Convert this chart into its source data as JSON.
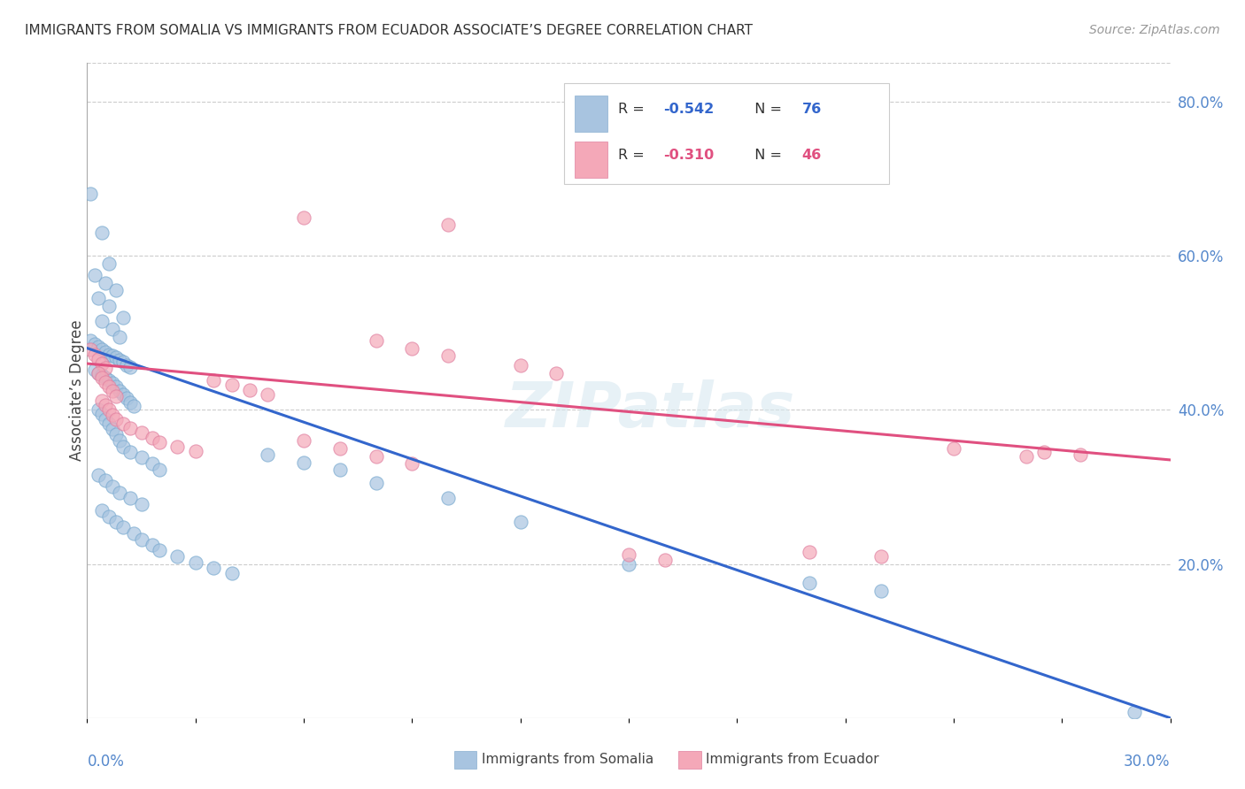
{
  "title": "IMMIGRANTS FROM SOMALIA VS IMMIGRANTS FROM ECUADOR ASSOCIATE’S DEGREE CORRELATION CHART",
  "source": "Source: ZipAtlas.com",
  "ylabel": "Associate’s Degree",
  "right_yticks": [
    "20.0%",
    "40.0%",
    "60.0%",
    "80.0%"
  ],
  "right_ytick_vals": [
    0.2,
    0.4,
    0.6,
    0.8
  ],
  "somalia_color": "#a8c4e0",
  "ecuador_color": "#f4a8b8",
  "somalia_line_color": "#3366cc",
  "ecuador_line_color": "#e05080",
  "somalia_label": "Immigrants from Somalia",
  "ecuador_label": "Immigrants from Ecuador",
  "xmin": 0.0,
  "xmax": 0.3,
  "ymin": 0.0,
  "ymax": 0.85,
  "somalia_trend": [
    0.48,
    0.0
  ],
  "ecuador_trend": [
    0.46,
    0.335
  ],
  "watermark": "ZIPatlas",
  "somalia_scatter": [
    [
      0.001,
      0.68
    ],
    [
      0.004,
      0.63
    ],
    [
      0.006,
      0.59
    ],
    [
      0.002,
      0.575
    ],
    [
      0.005,
      0.565
    ],
    [
      0.008,
      0.555
    ],
    [
      0.003,
      0.545
    ],
    [
      0.006,
      0.535
    ],
    [
      0.01,
      0.52
    ],
    [
      0.004,
      0.515
    ],
    [
      0.007,
      0.505
    ],
    [
      0.009,
      0.495
    ],
    [
      0.001,
      0.49
    ],
    [
      0.002,
      0.485
    ],
    [
      0.003,
      0.482
    ],
    [
      0.004,
      0.478
    ],
    [
      0.005,
      0.475
    ],
    [
      0.006,
      0.472
    ],
    [
      0.007,
      0.47
    ],
    [
      0.008,
      0.468
    ],
    [
      0.009,
      0.465
    ],
    [
      0.01,
      0.462
    ],
    [
      0.011,
      0.458
    ],
    [
      0.012,
      0.455
    ],
    [
      0.002,
      0.452
    ],
    [
      0.003,
      0.448
    ],
    [
      0.004,
      0.445
    ],
    [
      0.005,
      0.442
    ],
    [
      0.006,
      0.438
    ],
    [
      0.007,
      0.435
    ],
    [
      0.008,
      0.43
    ],
    [
      0.009,
      0.425
    ],
    [
      0.01,
      0.42
    ],
    [
      0.011,
      0.415
    ],
    [
      0.012,
      0.41
    ],
    [
      0.013,
      0.405
    ],
    [
      0.003,
      0.4
    ],
    [
      0.004,
      0.395
    ],
    [
      0.005,
      0.388
    ],
    [
      0.006,
      0.382
    ],
    [
      0.007,
      0.375
    ],
    [
      0.008,
      0.368
    ],
    [
      0.009,
      0.36
    ],
    [
      0.01,
      0.352
    ],
    [
      0.012,
      0.345
    ],
    [
      0.015,
      0.338
    ],
    [
      0.018,
      0.33
    ],
    [
      0.02,
      0.322
    ],
    [
      0.003,
      0.315
    ],
    [
      0.005,
      0.308
    ],
    [
      0.007,
      0.3
    ],
    [
      0.009,
      0.292
    ],
    [
      0.012,
      0.285
    ],
    [
      0.015,
      0.278
    ],
    [
      0.004,
      0.27
    ],
    [
      0.006,
      0.262
    ],
    [
      0.008,
      0.255
    ],
    [
      0.01,
      0.248
    ],
    [
      0.013,
      0.24
    ],
    [
      0.015,
      0.232
    ],
    [
      0.018,
      0.225
    ],
    [
      0.02,
      0.218
    ],
    [
      0.025,
      0.21
    ],
    [
      0.03,
      0.202
    ],
    [
      0.035,
      0.195
    ],
    [
      0.04,
      0.188
    ],
    [
      0.05,
      0.342
    ],
    [
      0.06,
      0.332
    ],
    [
      0.07,
      0.322
    ],
    [
      0.08,
      0.305
    ],
    [
      0.1,
      0.285
    ],
    [
      0.12,
      0.255
    ],
    [
      0.15,
      0.2
    ],
    [
      0.2,
      0.175
    ],
    [
      0.22,
      0.165
    ],
    [
      0.29,
      0.008
    ]
  ],
  "ecuador_scatter": [
    [
      0.001,
      0.478
    ],
    [
      0.002,
      0.472
    ],
    [
      0.003,
      0.466
    ],
    [
      0.004,
      0.46
    ],
    [
      0.005,
      0.454
    ],
    [
      0.003,
      0.448
    ],
    [
      0.004,
      0.442
    ],
    [
      0.005,
      0.436
    ],
    [
      0.006,
      0.43
    ],
    [
      0.007,
      0.424
    ],
    [
      0.008,
      0.418
    ],
    [
      0.004,
      0.412
    ],
    [
      0.005,
      0.406
    ],
    [
      0.006,
      0.4
    ],
    [
      0.007,
      0.394
    ],
    [
      0.008,
      0.388
    ],
    [
      0.01,
      0.382
    ],
    [
      0.012,
      0.376
    ],
    [
      0.015,
      0.37
    ],
    [
      0.018,
      0.364
    ],
    [
      0.02,
      0.358
    ],
    [
      0.025,
      0.352
    ],
    [
      0.03,
      0.346
    ],
    [
      0.035,
      0.438
    ],
    [
      0.04,
      0.432
    ],
    [
      0.045,
      0.426
    ],
    [
      0.05,
      0.42
    ],
    [
      0.06,
      0.65
    ],
    [
      0.1,
      0.64
    ],
    [
      0.08,
      0.49
    ],
    [
      0.09,
      0.48
    ],
    [
      0.1,
      0.47
    ],
    [
      0.12,
      0.458
    ],
    [
      0.13,
      0.448
    ],
    [
      0.06,
      0.36
    ],
    [
      0.07,
      0.35
    ],
    [
      0.08,
      0.34
    ],
    [
      0.09,
      0.33
    ],
    [
      0.15,
      0.212
    ],
    [
      0.16,
      0.205
    ],
    [
      0.2,
      0.215
    ],
    [
      0.22,
      0.21
    ],
    [
      0.24,
      0.35
    ],
    [
      0.26,
      0.34
    ],
    [
      0.265,
      0.345
    ],
    [
      0.275,
      0.342
    ]
  ]
}
